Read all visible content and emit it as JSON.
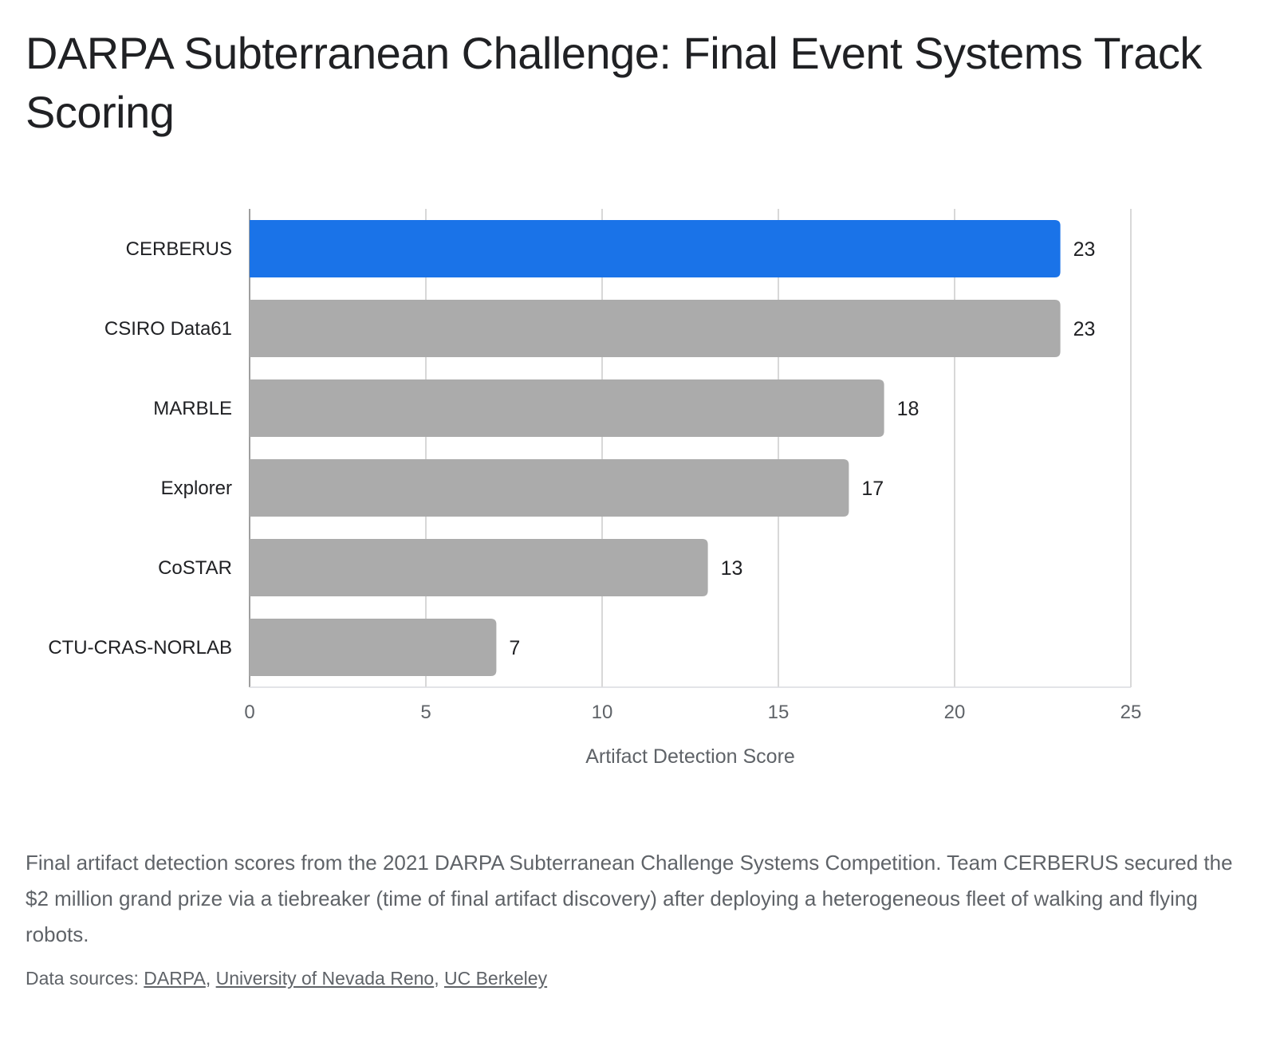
{
  "chart_data": {
    "type": "bar",
    "orientation": "horizontal",
    "title": "DARPA Subterranean Challenge: Final Event Systems Track Scoring",
    "xlabel": "Artifact Detection Score",
    "ylabel": "",
    "categories": [
      "CERBERUS",
      "CSIRO Data61",
      "MARBLE",
      "Explorer",
      "CoSTAR",
      "CTU-CRAS-NORLAB"
    ],
    "values": [
      23,
      23,
      18,
      17,
      13,
      7
    ],
    "xlim": [
      0,
      25
    ],
    "xticks": [
      0,
      5,
      10,
      15,
      20,
      25
    ],
    "highlight_index": 0,
    "colors": {
      "highlight": "#1a73e8",
      "default": "#ababab",
      "grid": "#cccccc"
    },
    "grid": true,
    "legend": "none",
    "data_labels": true
  },
  "caption": "Final artifact detection scores from the 2021 DARPA Subterranean Challenge Systems Competition. Team CERBERUS secured the $2 million grand prize via a tiebreaker (time of final artifact discovery) after deploying a heterogeneous fleet of walking and flying robots.",
  "sources": {
    "prefix": "Data sources: ",
    "links": [
      "DARPA",
      "University of Nevada Reno",
      "UC Berkeley"
    ],
    "separator": ", "
  }
}
